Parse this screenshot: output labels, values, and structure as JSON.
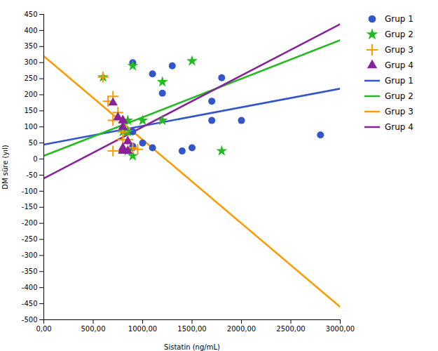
{
  "chart_data": {
    "type": "scatter",
    "xlabel": "Sistatin (ng/mL)",
    "ylabel": "DM süre (yıl)",
    "xlim": [
      0,
      3000
    ],
    "ylim": [
      -500,
      450
    ],
    "xticks": [
      {
        "value": 0,
        "label": "0,00"
      },
      {
        "value": 500,
        "label": "500,00"
      },
      {
        "value": 1000,
        "label": "1000,00"
      },
      {
        "value": 1500,
        "label": "1500,00"
      },
      {
        "value": 2000,
        "label": "2000,00"
      },
      {
        "value": 2500,
        "label": "2500,00"
      },
      {
        "value": 3000,
        "label": "3000,00"
      }
    ],
    "yticks": [
      -500,
      -450,
      -400,
      -350,
      -300,
      -250,
      -200,
      -150,
      -100,
      -50,
      0,
      50,
      100,
      150,
      200,
      250,
      300,
      350,
      400,
      450
    ],
    "grid": false,
    "legend": "right",
    "series": [
      {
        "name": "Grup 1",
        "type": "scatter",
        "color": "#3355cc",
        "marker": "circle",
        "x": [
          900,
          1300,
          1100,
          1200,
          1800,
          2800,
          2000,
          900,
          1000,
          1700,
          1500,
          900,
          1100,
          900,
          1400,
          1700
        ],
        "y": [
          300,
          290,
          265,
          205,
          253,
          75,
          120,
          85,
          50,
          120,
          35,
          40,
          35,
          35,
          25,
          180
        ]
      },
      {
        "name": "Grup 2",
        "type": "scatter",
        "color": "#22bb22",
        "marker": "star",
        "x": [
          600,
          1500,
          900,
          1200,
          850,
          1000,
          1200,
          800,
          1800,
          850,
          850,
          900
        ],
        "y": [
          255,
          305,
          290,
          240,
          120,
          120,
          120,
          85,
          25,
          85,
          25,
          10
        ]
      },
      {
        "name": "Grup 3",
        "type": "scatter",
        "color": "#ff9900",
        "marker": "plus",
        "x": [
          600,
          650,
          700,
          750,
          700,
          800,
          800,
          850,
          900,
          950,
          700
        ],
        "y": [
          255,
          180,
          195,
          145,
          120,
          85,
          60,
          60,
          35,
          30,
          25
        ]
      },
      {
        "name": "Grup 4",
        "type": "scatter",
        "color": "#882299",
        "marker": "triangle",
        "x": [
          700,
          750,
          800,
          800,
          800,
          850,
          800,
          800,
          800,
          850,
          800
        ],
        "y": [
          175,
          130,
          120,
          120,
          100,
          55,
          35,
          30,
          25,
          25,
          25
        ]
      },
      {
        "name": "Grup 1",
        "type": "line",
        "color": "#3355cc",
        "line_style": "solid",
        "x": [
          0,
          3000
        ],
        "y": [
          45,
          219
        ]
      },
      {
        "name": "Grup 2",
        "type": "line",
        "color": "#22bb22",
        "line_style": "solid",
        "x": [
          0,
          3000
        ],
        "y": [
          10,
          370
        ]
      },
      {
        "name": "Grup 3",
        "type": "line",
        "color": "#ff9900",
        "line_style": "solid",
        "x": [
          0,
          3000
        ],
        "y": [
          320,
          -460
        ]
      },
      {
        "name": "Grup 4",
        "type": "line",
        "color": "#882299",
        "line_style": "solid",
        "x": [
          0,
          3000
        ],
        "y": [
          -60,
          420
        ]
      }
    ]
  }
}
